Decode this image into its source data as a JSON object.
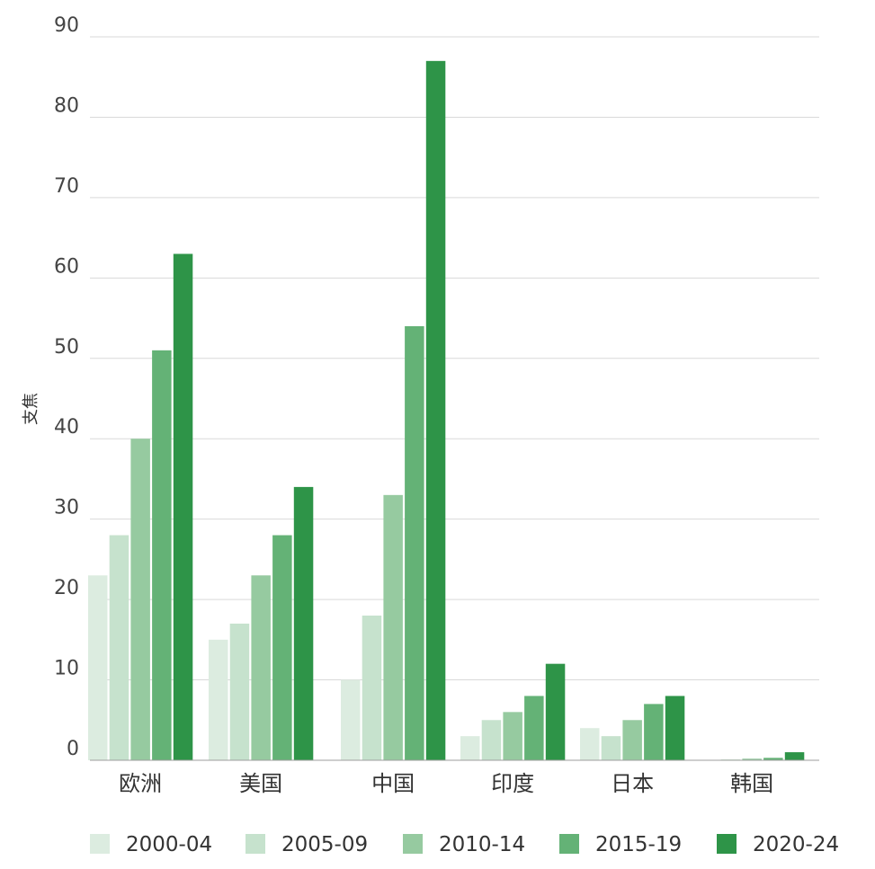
{
  "chart_data": {
    "type": "bar",
    "title": "",
    "xlabel": "",
    "ylabel": "支焦",
    "ylim": [
      0,
      90
    ],
    "yticks": [
      0,
      10,
      20,
      30,
      40,
      50,
      60,
      70,
      80,
      90
    ],
    "grid": true,
    "legend_position": "bottom",
    "categories": [
      "欧洲",
      "美国",
      "中国",
      "印度",
      "日本",
      "韩国"
    ],
    "series": [
      {
        "name": "2000-04",
        "color": "#dcece0",
        "values": [
          23,
          15,
          10,
          3,
          4,
          0
        ]
      },
      {
        "name": "2005-09",
        "color": "#c6e2cd",
        "values": [
          28,
          17,
          18,
          5,
          3,
          0.1
        ]
      },
      {
        "name": "2010-14",
        "color": "#96caa0",
        "values": [
          40,
          23,
          33,
          6,
          5,
          0.2
        ]
      },
      {
        "name": "2015-19",
        "color": "#64b276",
        "values": [
          51,
          28,
          54,
          8,
          7,
          0.3
        ]
      },
      {
        "name": "2020-24",
        "color": "#2e9448",
        "values": [
          63,
          34,
          87,
          12,
          8,
          1
        ]
      }
    ]
  }
}
